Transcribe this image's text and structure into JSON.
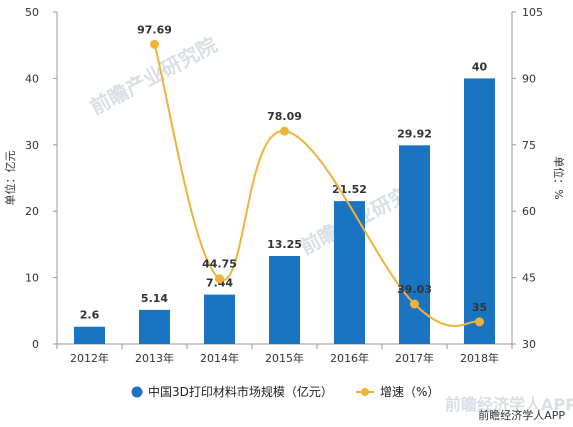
{
  "chart_data": {
    "type": "bar+line",
    "categories": [
      "2012年",
      "2013年",
      "2014年",
      "2015年",
      "2016年",
      "2017年",
      "2018年"
    ],
    "bar_series": {
      "name": "中国3D打印材料市场规模（亿元）",
      "values": [
        2.6,
        5.14,
        7.44,
        13.25,
        21.52,
        29.92,
        40
      ],
      "color": "#1a74c2"
    },
    "line_series": {
      "name": "增速（%）",
      "values": [
        null,
        97.69,
        44.75,
        78.09,
        null,
        39.03,
        35
      ],
      "labels": [
        "",
        "97.69",
        "44.75",
        "78.09",
        "",
        "39.03",
        "35"
      ],
      "color": "#f0b23a",
      "smooth": true
    },
    "y_left": {
      "label": "单位：亿元",
      "ticks": [
        0,
        10,
        20,
        30,
        40,
        50
      ],
      "ylim": [
        0,
        50
      ]
    },
    "y_right": {
      "label": "单位：%",
      "ticks": [
        30,
        45,
        60,
        75,
        90,
        105
      ],
      "ylim": [
        30,
        105
      ]
    },
    "legend_position": "bottom",
    "grid": false
  },
  "watermark": {
    "main": "前瞻产业研究院",
    "bottom_right": "前瞻经济学人APP",
    "bottom_logo": "前瞻经济学人APP"
  },
  "colors": {
    "bar": "#1a74c2",
    "line": "#f0b23a",
    "axis": "#999999"
  }
}
